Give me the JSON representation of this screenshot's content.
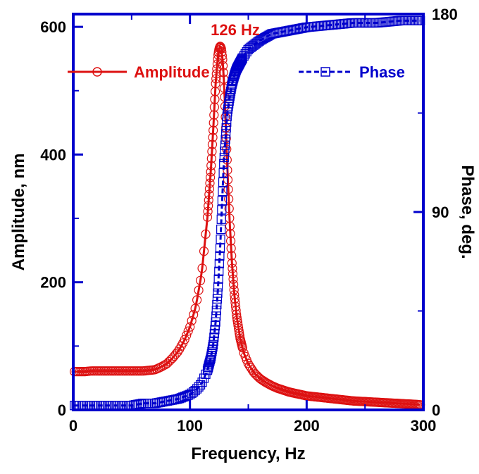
{
  "chart_data": {
    "type": "line",
    "title": "",
    "xlabel": "Frequency, Hz",
    "ylabel": "Amplitude, nm",
    "y2label": "Phase, deg.",
    "xlim": [
      0,
      300
    ],
    "ylim": [
      0,
      620
    ],
    "y2lim": [
      0,
      180
    ],
    "x_ticks": [
      0,
      100,
      200,
      300
    ],
    "y_ticks": [
      0,
      200,
      400,
      600
    ],
    "y2_ticks": [
      0,
      90,
      180
    ],
    "x_tick_labels": [
      "0",
      "100",
      "200",
      "300"
    ],
    "y_tick_labels": [
      "0",
      "200",
      "400",
      "600"
    ],
    "y2_tick_labels": [
      "0",
      "90",
      "180"
    ],
    "grid": false,
    "legend_placement": "top",
    "annotation": "126 Hz",
    "colors": {
      "amplitude": "#dd1111",
      "phase": "#0000cc",
      "axes": "#0000cc"
    },
    "series": [
      {
        "name": "Amplitude",
        "axis": "left",
        "marker": "circle",
        "line": "solid",
        "x": [
          1,
          5,
          10,
          15,
          20,
          25,
          30,
          35,
          40,
          45,
          50,
          55,
          60,
          65,
          70,
          75,
          80,
          85,
          90,
          95,
          100,
          105,
          110,
          115,
          118,
          120,
          122,
          124,
          125,
          126,
          127,
          128,
          129,
          130,
          131,
          132,
          134,
          136,
          138,
          140,
          143,
          146,
          150,
          155,
          160,
          165,
          170,
          175,
          180,
          185,
          190,
          195,
          200,
          210,
          220,
          230,
          240,
          250,
          260,
          270,
          280,
          290,
          298
        ],
        "y": [
          60,
          60,
          60,
          61,
          61,
          61,
          61,
          61,
          61,
          61,
          61,
          61,
          61,
          62,
          63,
          67,
          72,
          81,
          92,
          108,
          130,
          162,
          213,
          302,
          378,
          441,
          511,
          555,
          566,
          570,
          565,
          548,
          518,
          478,
          430,
          382,
          296,
          230,
          182,
          147,
          112,
          90,
          72,
          58,
          49,
          43,
          38,
          34,
          31,
          28,
          26,
          24,
          22,
          20,
          18,
          16,
          14,
          13,
          12,
          11,
          10,
          9,
          8
        ]
      },
      {
        "name": "Phase",
        "axis": "right",
        "marker": "square",
        "line": "dashed",
        "x": [
          1,
          10,
          20,
          30,
          40,
          50,
          60,
          70,
          80,
          90,
          95,
          100,
          105,
          110,
          115,
          118,
          120,
          122,
          124,
          125,
          126,
          127,
          128,
          129,
          130,
          132,
          134,
          136,
          138,
          140,
          145,
          150,
          160,
          170,
          180,
          190,
          200,
          220,
          240,
          260,
          280,
          298
        ],
        "y": [
          2,
          2,
          2,
          2,
          2,
          2,
          3,
          3,
          4,
          5,
          6,
          7,
          9,
          12,
          18,
          24,
          30,
          40,
          55,
          65,
          75,
          88,
          100,
          112,
          120,
          135,
          142,
          148,
          152,
          155,
          160,
          164,
          168,
          171,
          172,
          173,
          174,
          175,
          176,
          176,
          177,
          177
        ]
      }
    ]
  }
}
